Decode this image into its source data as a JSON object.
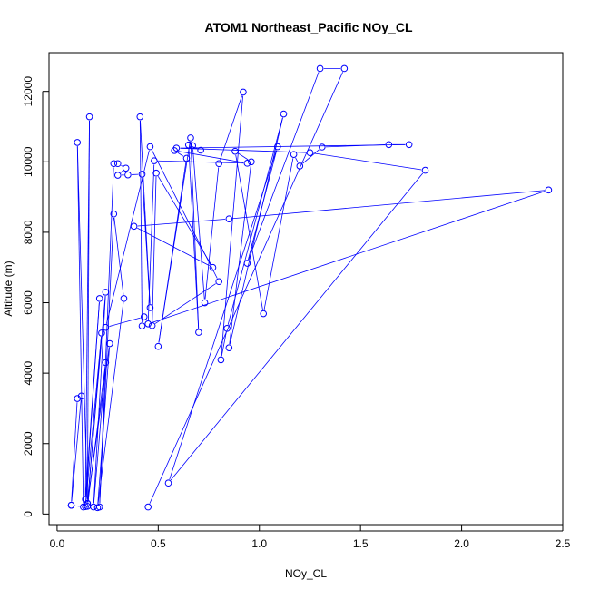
{
  "chart_data": {
    "type": "line",
    "title": "ATOM1 Northeast_Pacific NOy_CL",
    "xlabel": "NOy_CL",
    "ylabel": "Altitude (m)",
    "xlim": [
      -0.04,
      2.5
    ],
    "ylim": [
      -300,
      13100
    ],
    "x_ticks": [
      0.0,
      0.5,
      1.0,
      1.5,
      2.0,
      2.5
    ],
    "x_tick_labels": [
      "0.0",
      "0.5",
      "1.0",
      "1.5",
      "2.0",
      "2.5"
    ],
    "y_ticks": [
      0,
      2000,
      4000,
      6000,
      8000,
      10000,
      12000
    ],
    "y_tick_labels": [
      "0",
      "2000",
      "4000",
      "6000",
      "8000",
      "10000",
      "12000"
    ],
    "grid": false,
    "legend": "none",
    "series": [
      {
        "color": "#0000ff",
        "marker": "open-circle",
        "points": [
          [
            0.07,
            250
          ],
          [
            0.1,
            3280
          ],
          [
            0.12,
            3350
          ],
          [
            0.07,
            250
          ],
          [
            0.13,
            200
          ],
          [
            0.1,
            10550
          ],
          [
            0.15,
            300
          ],
          [
            0.16,
            11280
          ],
          [
            0.14,
            420
          ],
          [
            0.21,
            6120
          ],
          [
            0.14,
            210
          ],
          [
            0.22,
            5140
          ],
          [
            0.15,
            220
          ],
          [
            0.24,
            4300
          ],
          [
            0.18,
            200
          ],
          [
            0.24,
            6300
          ],
          [
            0.15,
            300
          ],
          [
            0.26,
            4840
          ],
          [
            0.2,
            180
          ],
          [
            0.33,
            6120
          ],
          [
            0.28,
            8520
          ],
          [
            0.21,
            200
          ],
          [
            0.28,
            9950
          ],
          [
            0.3,
            9950
          ],
          [
            0.34,
            9820
          ],
          [
            0.3,
            9620
          ],
          [
            0.35,
            9630
          ],
          [
            0.42,
            9650
          ],
          [
            0.46,
            5860
          ],
          [
            0.41,
            11280
          ],
          [
            0.42,
            5340
          ],
          [
            0.43,
            5600
          ],
          [
            0.24,
            5300
          ],
          [
            0.46,
            10430
          ],
          [
            0.8,
            6600
          ],
          [
            0.47,
            5350
          ],
          [
            0.49,
            9680
          ],
          [
            0.77,
            7000
          ],
          [
            0.38,
            8170
          ],
          [
            0.85,
            8380
          ],
          [
            2.43,
            9200
          ],
          [
            0.45,
            5400
          ],
          [
            0.48,
            10030
          ],
          [
            0.94,
            9960
          ],
          [
            0.58,
            10320
          ],
          [
            0.64,
            10100
          ],
          [
            0.5,
            4760
          ],
          [
            0.66,
            10680
          ],
          [
            0.7,
            5160
          ],
          [
            0.65,
            10480
          ],
          [
            0.71,
            10330
          ],
          [
            0.67,
            10460
          ],
          [
            0.73,
            6000
          ],
          [
            0.8,
            9950
          ],
          [
            0.92,
            11980
          ],
          [
            0.81,
            4380
          ],
          [
            0.84,
            5270
          ],
          [
            1.12,
            11360
          ],
          [
            0.85,
            4720
          ],
          [
            0.96,
            10000
          ],
          [
            0.88,
            10300
          ],
          [
            1.02,
            5690
          ],
          [
            1.17,
            10210
          ],
          [
            1.2,
            9880
          ],
          [
            1.31,
            10420
          ],
          [
            1.64,
            10490
          ],
          [
            1.74,
            10490
          ],
          [
            0.59,
            10390
          ],
          [
            1.25,
            10260
          ],
          [
            1.82,
            9760
          ],
          [
            0.55,
            880
          ],
          [
            1.09,
            10430
          ],
          [
            0.94,
            7120
          ],
          [
            1.3,
            12650
          ],
          [
            1.42,
            12650
          ],
          [
            0.45,
            200
          ]
        ]
      }
    ]
  }
}
